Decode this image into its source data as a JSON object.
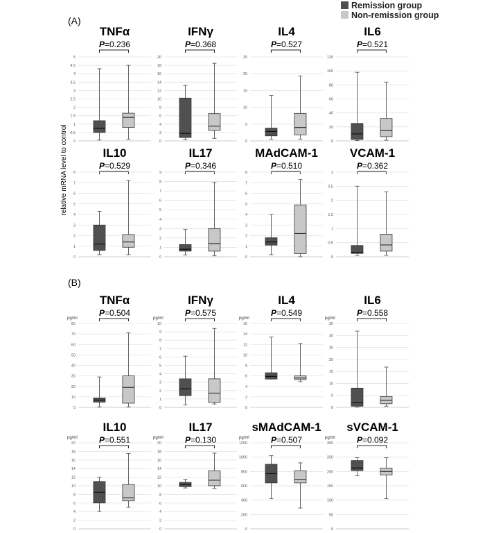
{
  "legend": {
    "remission_label": "Remission group",
    "nonremission_label": "Non-remission group",
    "remission_color": "#505050",
    "nonremission_color": "#c8c8c8"
  },
  "y_axis_label": "relative mRNA level to control",
  "sections": [
    {
      "label": "(A)",
      "unit_label": "",
      "panels": [
        {
          "title": "TNFα",
          "p_prefix": "P",
          "p_text": "=0.236",
          "ymax": 5,
          "step": 0.5,
          "boxes": [
            {
              "min": 0.05,
              "q1": 0.5,
              "median": 0.75,
              "q3": 1.2,
              "max": 4.3
            },
            {
              "min": 0.1,
              "q1": 0.8,
              "median": 1.4,
              "q3": 1.65,
              "max": 4.5
            }
          ]
        },
        {
          "title": "IFNγ",
          "p_prefix": "P",
          "p_text": "=0.368",
          "ymax": 20,
          "step": 2,
          "boxes": [
            {
              "min": 0.3,
              "q1": 0.8,
              "median": 1.8,
              "q3": 10.2,
              "max": 13.2
            },
            {
              "min": 0.6,
              "q1": 2.5,
              "median": 3.5,
              "q3": 6.5,
              "max": 18.5
            }
          ]
        },
        {
          "title": "IL4",
          "p_prefix": "P",
          "p_text": "=0.527",
          "ymax": 25,
          "step": 5,
          "boxes": [
            {
              "min": 0.5,
              "q1": 1.5,
              "median": 2.8,
              "q3": 3.8,
              "max": 13.5
            },
            {
              "min": 0.5,
              "q1": 1.8,
              "median": 4.0,
              "q3": 8.2,
              "max": 19.3
            }
          ]
        },
        {
          "title": "IL6",
          "p_prefix": "P",
          "p_text": "=0.521",
          "ymax": 120,
          "step": 20,
          "boxes": [
            {
              "min": 0.5,
              "q1": 2,
              "median": 10,
              "q3": 25,
              "max": 98
            },
            {
              "min": 1,
              "q1": 6,
              "median": 15,
              "q3": 32,
              "max": 84
            }
          ]
        },
        {
          "title": "IL10",
          "p_prefix": "P",
          "p_text": "=0.529",
          "ymax": 8,
          "step": 1,
          "boxes": [
            {
              "min": 0.2,
              "q1": 0.6,
              "median": 1.2,
              "q3": 3.0,
              "max": 4.3
            },
            {
              "min": 0.2,
              "q1": 0.9,
              "median": 1.4,
              "q3": 2.1,
              "max": 7.2
            }
          ]
        },
        {
          "title": "IL17",
          "p_prefix": "P",
          "p_text": "=0.346",
          "ymax": 9,
          "step": 1,
          "boxes": [
            {
              "min": 0.2,
              "q1": 0.6,
              "median": 0.8,
              "q3": 1.3,
              "max": 2.9
            },
            {
              "min": 0.1,
              "q1": 0.6,
              "median": 1.4,
              "q3": 3.0,
              "max": 7.9
            }
          ]
        },
        {
          "title": "MAdCAM-1",
          "p_prefix": "P",
          "p_text": "=0.510",
          "ymax": 8,
          "step": 1,
          "boxes": [
            {
              "min": 0.2,
              "q1": 1.1,
              "median": 1.4,
              "q3": 1.8,
              "max": 4.0
            },
            {
              "min": 0.0,
              "q1": 0.3,
              "median": 2.2,
              "q3": 4.9,
              "max": 7.3
            }
          ]
        },
        {
          "title": "VCAM-1",
          "p_prefix": "P",
          "p_text": "=0.362",
          "ymax": 3,
          "step": 0.5,
          "boxes": [
            {
              "min": 0.05,
              "q1": 0.12,
              "median": 0.15,
              "q3": 0.4,
              "max": 2.5
            },
            {
              "min": 0.05,
              "q1": 0.2,
              "median": 0.42,
              "q3": 0.8,
              "max": 2.3
            }
          ]
        }
      ]
    },
    {
      "label": "(B)",
      "unit_label": "pg/ml",
      "panels": [
        {
          "title": "TNFα",
          "p_prefix": "P",
          "p_text": "=0.504",
          "ymax": 80,
          "step": 10,
          "boxes": [
            {
              "min": 0.5,
              "q1": 5,
              "median": 7,
              "q3": 9,
              "max": 29
            },
            {
              "min": 0.5,
              "q1": 4,
              "median": 19,
              "q3": 30,
              "max": 71
            }
          ]
        },
        {
          "title": "IFNγ",
          "p_prefix": "P",
          "p_text": "=0.575",
          "ymax": 10,
          "step": 1,
          "boxes": [
            {
              "min": 0.3,
              "q1": 1.4,
              "median": 2.2,
              "q3": 3.4,
              "max": 6.1
            },
            {
              "min": 0.4,
              "q1": 0.6,
              "median": 1.7,
              "q3": 3.4,
              "max": 9.4
            }
          ]
        },
        {
          "title": "IL4",
          "p_prefix": "P",
          "p_text": "=0.549",
          "ymax": 16,
          "step": 2,
          "boxes": [
            {
              "min": 5.4,
              "q1": 5.4,
              "median": 5.9,
              "q3": 6.6,
              "max": 13.4
            },
            {
              "min": 4.9,
              "q1": 5.3,
              "median": 5.6,
              "q3": 6.0,
              "max": 12.2
            }
          ]
        },
        {
          "title": "IL6",
          "p_prefix": "P",
          "p_text": "=0.558",
          "ymax": 35,
          "step": 5,
          "boxes": [
            {
              "min": 0.2,
              "q1": 0.5,
              "median": 2.0,
              "q3": 8.0,
              "max": 31.8
            },
            {
              "min": 0.5,
              "q1": 1.5,
              "median": 3.0,
              "q3": 4.5,
              "max": 16.8
            }
          ]
        },
        {
          "title": "IL10",
          "p_prefix": "P",
          "p_text": "=0.551",
          "ymax": 20,
          "step": 2,
          "boxes": [
            {
              "min": 4.0,
              "q1": 6.0,
              "median": 8.5,
              "q3": 11.0,
              "max": 12.0
            },
            {
              "min": 5.0,
              "q1": 6.5,
              "median": 7.2,
              "q3": 10.3,
              "max": 17.5
            }
          ]
        },
        {
          "title": "IL17",
          "p_prefix": "P",
          "p_text": "=0.130",
          "ymax": 20,
          "step": 2,
          "boxes": [
            {
              "min": 9.5,
              "q1": 9.8,
              "median": 10.3,
              "q3": 10.8,
              "max": 11.5
            },
            {
              "min": 9.4,
              "q1": 10.0,
              "median": 11.3,
              "q3": 13.5,
              "max": 17.6
            }
          ]
        },
        {
          "title": "sMAdCAM-1",
          "p_prefix": "P",
          "p_text": "=0.507",
          "ymax": 1200,
          "step": 200,
          "boxes": [
            {
              "min": 420,
              "q1": 640,
              "median": 770,
              "q3": 900,
              "max": 1020
            },
            {
              "min": 290,
              "q1": 640,
              "median": 690,
              "q3": 810,
              "max": 920
            }
          ]
        },
        {
          "title": "sVCAM-1",
          "p_prefix": "P",
          "p_text": "=0.092",
          "ymax": 300,
          "step": 50,
          "boxes": [
            {
              "min": 185,
              "q1": 203,
              "median": 212,
              "q3": 238,
              "max": 248
            },
            {
              "min": 105,
              "q1": 188,
              "median": 200,
              "q3": 212,
              "max": 248
            }
          ]
        }
      ]
    }
  ],
  "chart_data": [
    {
      "type": "box",
      "section": "(A)",
      "title": "TNFα",
      "ylabel": "relative mRNA level to control",
      "ylim": [
        0,
        5
      ],
      "series": [
        {
          "name": "Remission group",
          "min": 0.05,
          "q1": 0.5,
          "median": 0.75,
          "q3": 1.2,
          "max": 4.3
        },
        {
          "name": "Non-remission group",
          "min": 0.1,
          "q1": 0.8,
          "median": 1.4,
          "q3": 1.65,
          "max": 4.5
        }
      ],
      "p_value": "0.236"
    },
    {
      "type": "box",
      "section": "(A)",
      "title": "IFNγ",
      "ylim": [
        0,
        20
      ],
      "series": [
        {
          "name": "Remission group",
          "min": 0.3,
          "q1": 0.8,
          "median": 1.8,
          "q3": 10.2,
          "max": 13.2
        },
        {
          "name": "Non-remission group",
          "min": 0.6,
          "q1": 2.5,
          "median": 3.5,
          "q3": 6.5,
          "max": 18.5
        }
      ],
      "p_value": "0.368"
    },
    {
      "type": "box",
      "section": "(A)",
      "title": "IL4",
      "ylim": [
        0,
        25
      ],
      "series": [
        {
          "name": "Remission group",
          "min": 0.5,
          "q1": 1.5,
          "median": 2.8,
          "q3": 3.8,
          "max": 13.5
        },
        {
          "name": "Non-remission group",
          "min": 0.5,
          "q1": 1.8,
          "median": 4.0,
          "q3": 8.2,
          "max": 19.3
        }
      ],
      "p_value": "0.527"
    },
    {
      "type": "box",
      "section": "(A)",
      "title": "IL6",
      "ylim": [
        0,
        120
      ],
      "series": [
        {
          "name": "Remission group",
          "min": 0.5,
          "q1": 2,
          "median": 10,
          "q3": 25,
          "max": 98
        },
        {
          "name": "Non-remission group",
          "min": 1,
          "q1": 6,
          "median": 15,
          "q3": 32,
          "max": 84
        }
      ],
      "p_value": "0.521"
    },
    {
      "type": "box",
      "section": "(A)",
      "title": "IL10",
      "ylim": [
        0,
        8
      ],
      "series": [
        {
          "name": "Remission group",
          "min": 0.2,
          "q1": 0.6,
          "median": 1.2,
          "q3": 3.0,
          "max": 4.3
        },
        {
          "name": "Non-remission group",
          "min": 0.2,
          "q1": 0.9,
          "median": 1.4,
          "q3": 2.1,
          "max": 7.2
        }
      ],
      "p_value": "0.529"
    },
    {
      "type": "box",
      "section": "(A)",
      "title": "IL17",
      "ylim": [
        0,
        9
      ],
      "series": [
        {
          "name": "Remission group",
          "min": 0.2,
          "q1": 0.6,
          "median": 0.8,
          "q3": 1.3,
          "max": 2.9
        },
        {
          "name": "Non-remission group",
          "min": 0.1,
          "q1": 0.6,
          "median": 1.4,
          "q3": 3.0,
          "max": 7.9
        }
      ],
      "p_value": "0.346"
    },
    {
      "type": "box",
      "section": "(A)",
      "title": "MAdCAM-1",
      "ylim": [
        0,
        8
      ],
      "series": [
        {
          "name": "Remission group",
          "min": 0.2,
          "q1": 1.1,
          "median": 1.4,
          "q3": 1.8,
          "max": 4.0
        },
        {
          "name": "Non-remission group",
          "min": 0.0,
          "q1": 0.3,
          "median": 2.2,
          "q3": 4.9,
          "max": 7.3
        }
      ],
      "p_value": "0.510"
    },
    {
      "type": "box",
      "section": "(A)",
      "title": "VCAM-1",
      "ylim": [
        0,
        3
      ],
      "series": [
        {
          "name": "Remission group",
          "min": 0.05,
          "q1": 0.12,
          "median": 0.15,
          "q3": 0.4,
          "max": 2.5
        },
        {
          "name": "Non-remission group",
          "min": 0.05,
          "q1": 0.2,
          "median": 0.42,
          "q3": 0.8,
          "max": 2.3
        }
      ],
      "p_value": "0.362"
    },
    {
      "type": "box",
      "section": "(B)",
      "title": "TNFα",
      "ylabel": "pg/ml",
      "ylim": [
        0,
        80
      ],
      "series": [
        {
          "name": "Remission group",
          "min": 0.5,
          "q1": 5,
          "median": 7,
          "q3": 9,
          "max": 29
        },
        {
          "name": "Non-remission group",
          "min": 0.5,
          "q1": 4,
          "median": 19,
          "q3": 30,
          "max": 71
        }
      ],
      "p_value": "0.504"
    },
    {
      "type": "box",
      "section": "(B)",
      "title": "IFNγ",
      "ylabel": "pg/ml",
      "ylim": [
        0,
        10
      ],
      "series": [
        {
          "name": "Remission group",
          "min": 0.3,
          "q1": 1.4,
          "median": 2.2,
          "q3": 3.4,
          "max": 6.1
        },
        {
          "name": "Non-remission group",
          "min": 0.4,
          "q1": 0.6,
          "median": 1.7,
          "q3": 3.4,
          "max": 9.4
        }
      ],
      "p_value": "0.575"
    },
    {
      "type": "box",
      "section": "(B)",
      "title": "IL4",
      "ylabel": "pg/ml",
      "ylim": [
        0,
        16
      ],
      "series": [
        {
          "name": "Remission group",
          "min": 5.4,
          "q1": 5.4,
          "median": 5.9,
          "q3": 6.6,
          "max": 13.4
        },
        {
          "name": "Non-remission group",
          "min": 4.9,
          "q1": 5.3,
          "median": 5.6,
          "q3": 6.0,
          "max": 12.2
        }
      ],
      "p_value": "0.549"
    },
    {
      "type": "box",
      "section": "(B)",
      "title": "IL6",
      "ylabel": "pg/ml",
      "ylim": [
        0,
        35
      ],
      "series": [
        {
          "name": "Remission group",
          "min": 0.2,
          "q1": 0.5,
          "median": 2.0,
          "q3": 8.0,
          "max": 31.8
        },
        {
          "name": "Non-remission group",
          "min": 0.5,
          "q1": 1.5,
          "median": 3.0,
          "q3": 4.5,
          "max": 16.8
        }
      ],
      "p_value": "0.558"
    },
    {
      "type": "box",
      "section": "(B)",
      "title": "IL10",
      "ylabel": "pg/ml",
      "ylim": [
        0,
        20
      ],
      "series": [
        {
          "name": "Remission group",
          "min": 4.0,
          "q1": 6.0,
          "median": 8.5,
          "q3": 11.0,
          "max": 12.0
        },
        {
          "name": "Non-remission group",
          "min": 5.0,
          "q1": 6.5,
          "median": 7.2,
          "q3": 10.3,
          "max": 17.5
        }
      ],
      "p_value": "0.551"
    },
    {
      "type": "box",
      "section": "(B)",
      "title": "IL17",
      "ylabel": "pg/ml",
      "ylim": [
        0,
        20
      ],
      "series": [
        {
          "name": "Remission group",
          "min": 9.5,
          "q1": 9.8,
          "median": 10.3,
          "q3": 10.8,
          "max": 11.5
        },
        {
          "name": "Non-remission group",
          "min": 9.4,
          "q1": 10.0,
          "median": 11.3,
          "q3": 13.5,
          "max": 17.6
        }
      ],
      "p_value": "0.130"
    },
    {
      "type": "box",
      "section": "(B)",
      "title": "sMAdCAM-1",
      "ylabel": "pg/ml",
      "ylim": [
        0,
        1200
      ],
      "series": [
        {
          "name": "Remission group",
          "min": 420,
          "q1": 640,
          "median": 770,
          "q3": 900,
          "max": 1020
        },
        {
          "name": "Non-remission group",
          "min": 290,
          "q1": 640,
          "median": 690,
          "q3": 810,
          "max": 920
        }
      ],
      "p_value": "0.507"
    },
    {
      "type": "box",
      "section": "(B)",
      "title": "sVCAM-1",
      "ylabel": "pg/ml",
      "ylim": [
        0,
        300
      ],
      "series": [
        {
          "name": "Remission group",
          "min": 185,
          "q1": 203,
          "median": 212,
          "q3": 238,
          "max": 248
        },
        {
          "name": "Non-remission group",
          "min": 105,
          "q1": 188,
          "median": 200,
          "q3": 212,
          "max": 248
        }
      ],
      "p_value": "0.092"
    }
  ]
}
